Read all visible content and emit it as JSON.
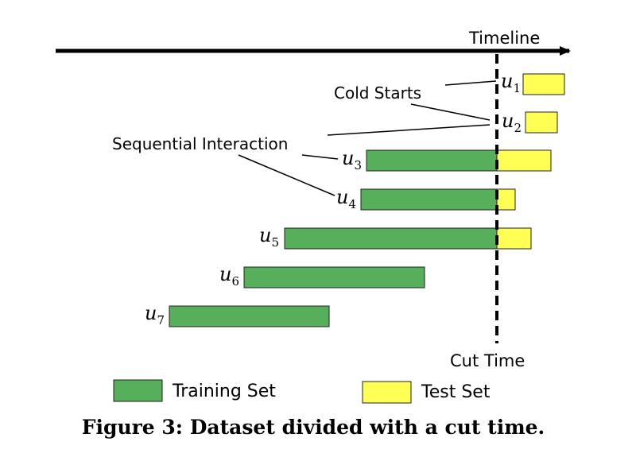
{
  "diagram": {
    "timeline_label": "Timeline",
    "cut_time_label": "Cut Time",
    "annotations": {
      "cold_starts": "Cold Starts",
      "sequential_interaction": "Sequential Interaction"
    },
    "users": [
      {
        "id": "u1",
        "label": "u",
        "sub": "1"
      },
      {
        "id": "u2",
        "label": "u",
        "sub": "2"
      },
      {
        "id": "u3",
        "label": "u",
        "sub": "3"
      },
      {
        "id": "u4",
        "label": "u",
        "sub": "4"
      },
      {
        "id": "u5",
        "label": "u",
        "sub": "5"
      },
      {
        "id": "u6",
        "label": "u",
        "sub": "6"
      },
      {
        "id": "u7",
        "label": "u",
        "sub": "7"
      }
    ],
    "legend": {
      "training": "Training Set",
      "test": "Test Set"
    },
    "colors": {
      "training": "#57ae5b",
      "test": "#ffff54",
      "line": "#000000"
    }
  },
  "caption": "Figure 3: Dataset divided with a cut time."
}
